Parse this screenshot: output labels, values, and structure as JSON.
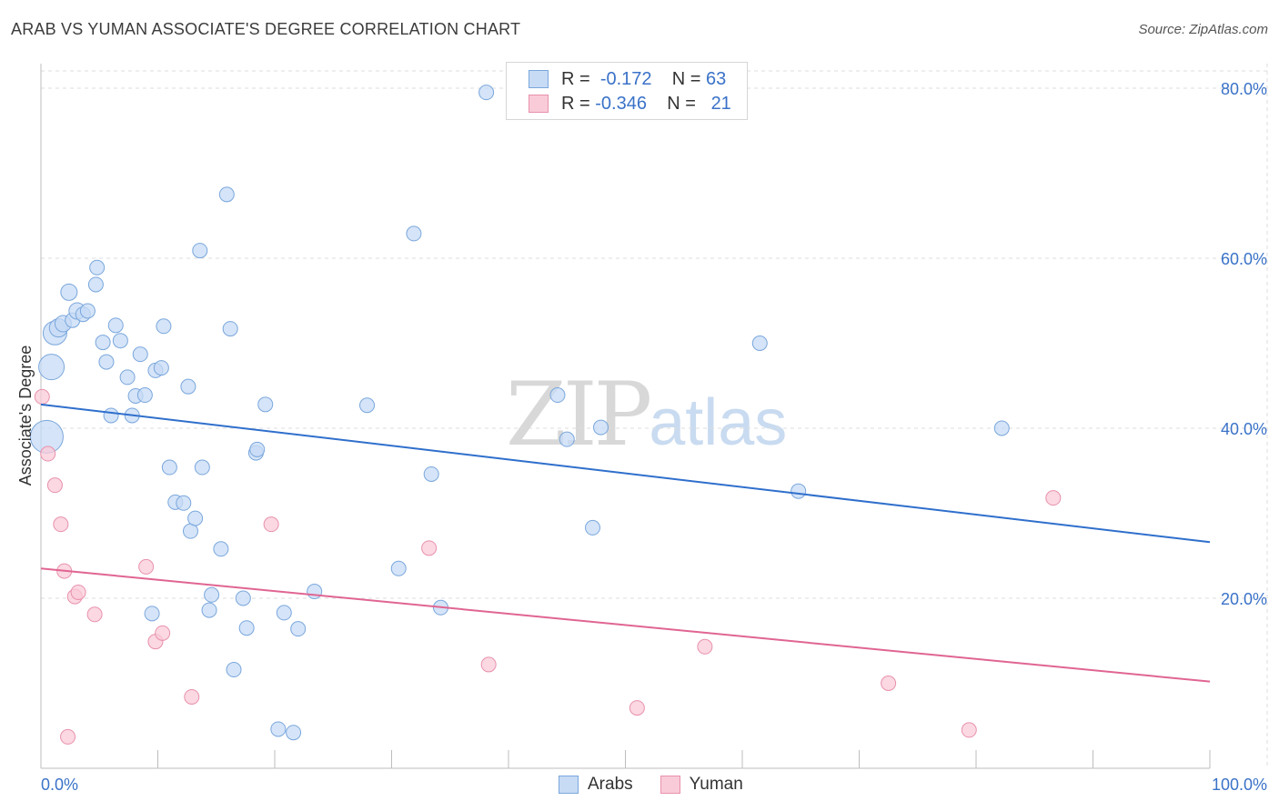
{
  "title": "ARAB VS YUMAN ASSOCIATE'S DEGREE CORRELATION CHART",
  "source": "Source: ZipAtlas.com",
  "watermark": {
    "part1": "ZIP",
    "part2": "atlas"
  },
  "colors": {
    "arabs_fill": "#c7dbf5",
    "arabs_stroke": "#7aa7dc",
    "arabs_line": "#2f6fcc",
    "yuman_fill": "#f9cbd8",
    "yuman_stroke": "#e891ac",
    "yuman_line": "#e06592",
    "tick_label": "#3a72c8",
    "grid": "#dcdcdc"
  },
  "legend": {
    "rows": [
      {
        "r_label": "R =",
        "r_value": "-0.172",
        "n_label": "N =",
        "n_value": "63"
      },
      {
        "r_label": "R =",
        "r_value": "-0.346",
        "n_label": "N =",
        "n_value": "21"
      }
    ]
  },
  "bottom_legend": [
    "Arabs",
    "Yuman"
  ],
  "chart_data": {
    "type": "scatter",
    "title": "ARAB VS YUMAN ASSOCIATE'S DEGREE CORRELATION CHART",
    "xlabel": "",
    "ylabel": "Associate's Degree",
    "xlim": [
      0,
      100
    ],
    "ylim": [
      0,
      85
    ],
    "x_ticks": [
      "0.0%",
      "100.0%"
    ],
    "y_ticks": [
      {
        "value": 20,
        "label": "20.0%"
      },
      {
        "value": 40,
        "label": "40.0%"
      },
      {
        "value": 60,
        "label": "60.0%"
      },
      {
        "value": 80,
        "label": "80.0%"
      }
    ],
    "grid": true,
    "legend_position": "top-center",
    "series": [
      {
        "name": "Arabs",
        "R": -0.172,
        "N": 63,
        "trend": {
          "x": [
            0,
            100
          ],
          "y": [
            42.8,
            26.6
          ]
        },
        "points": [
          [
            0.5,
            39.0,
            18
          ],
          [
            0.9,
            47.2,
            14
          ],
          [
            1.2,
            51.2,
            13
          ],
          [
            1.5,
            51.8,
            10
          ],
          [
            1.9,
            52.3,
            9
          ],
          [
            2.4,
            56.0,
            9
          ],
          [
            2.7,
            52.7,
            8
          ],
          [
            3.1,
            53.8,
            9
          ],
          [
            3.6,
            53.4,
            8
          ],
          [
            4.0,
            53.8,
            8
          ],
          [
            4.7,
            56.9,
            8
          ],
          [
            4.8,
            58.9,
            8
          ],
          [
            5.3,
            50.1,
            8
          ],
          [
            5.6,
            47.8,
            8
          ],
          [
            6.0,
            41.5,
            8
          ],
          [
            6.4,
            52.1,
            8
          ],
          [
            6.8,
            50.3,
            8
          ],
          [
            7.4,
            46.0,
            8
          ],
          [
            7.8,
            41.5,
            8
          ],
          [
            8.1,
            43.8,
            8
          ],
          [
            8.5,
            48.7,
            8
          ],
          [
            8.9,
            43.9,
            8
          ],
          [
            9.5,
            18.2,
            8
          ],
          [
            9.8,
            46.8,
            8
          ],
          [
            10.3,
            47.1,
            8
          ],
          [
            10.5,
            52.0,
            8
          ],
          [
            11.0,
            35.4,
            8
          ],
          [
            11.5,
            31.3,
            8
          ],
          [
            12.2,
            31.2,
            8
          ],
          [
            12.6,
            44.9,
            8
          ],
          [
            12.8,
            27.9,
            8
          ],
          [
            13.2,
            29.4,
            8
          ],
          [
            13.6,
            60.9,
            8
          ],
          [
            13.8,
            35.4,
            8
          ],
          [
            14.4,
            18.6,
            8
          ],
          [
            14.6,
            20.4,
            8
          ],
          [
            15.4,
            25.8,
            8
          ],
          [
            15.9,
            67.5,
            8
          ],
          [
            16.2,
            51.7,
            8
          ],
          [
            16.5,
            11.6,
            8
          ],
          [
            17.3,
            20.0,
            8
          ],
          [
            17.6,
            16.5,
            8
          ],
          [
            18.4,
            37.1,
            8
          ],
          [
            18.5,
            37.5,
            8
          ],
          [
            19.2,
            42.8,
            8
          ],
          [
            20.3,
            4.6,
            8
          ],
          [
            20.8,
            18.3,
            8
          ],
          [
            21.6,
            4.2,
            8
          ],
          [
            22.0,
            16.4,
            8
          ],
          [
            23.4,
            20.8,
            8
          ],
          [
            27.9,
            42.7,
            8
          ],
          [
            30.6,
            23.5,
            8
          ],
          [
            31.9,
            62.9,
            8
          ],
          [
            33.4,
            34.6,
            8
          ],
          [
            34.2,
            18.9,
            8
          ],
          [
            38.1,
            79.5,
            8
          ],
          [
            44.2,
            43.9,
            8
          ],
          [
            45.0,
            38.7,
            8
          ],
          [
            47.2,
            28.3,
            8
          ],
          [
            47.9,
            40.1,
            8
          ],
          [
            61.5,
            50.0,
            8
          ],
          [
            64.8,
            32.6,
            8
          ],
          [
            82.2,
            40.0,
            8
          ]
        ]
      },
      {
        "name": "Yuman",
        "R": -0.346,
        "N": 21,
        "trend": {
          "x": [
            0,
            100
          ],
          "y": [
            23.5,
            10.2
          ]
        },
        "points": [
          [
            0.1,
            43.7,
            8
          ],
          [
            0.6,
            37.0,
            8
          ],
          [
            1.2,
            33.3,
            8
          ],
          [
            1.7,
            28.7,
            8
          ],
          [
            2.0,
            23.2,
            8
          ],
          [
            2.3,
            3.7,
            8
          ],
          [
            2.9,
            20.2,
            8
          ],
          [
            3.2,
            20.7,
            8
          ],
          [
            4.6,
            18.1,
            8
          ],
          [
            9.0,
            23.7,
            8
          ],
          [
            9.8,
            14.9,
            8
          ],
          [
            10.4,
            15.9,
            8
          ],
          [
            12.9,
            8.4,
            8
          ],
          [
            19.7,
            28.7,
            8
          ],
          [
            33.2,
            25.9,
            8
          ],
          [
            38.3,
            12.2,
            8
          ],
          [
            51.0,
            7.1,
            8
          ],
          [
            56.8,
            14.3,
            8
          ],
          [
            72.5,
            10.0,
            8
          ],
          [
            79.4,
            4.5,
            8
          ],
          [
            86.6,
            31.8,
            8
          ]
        ]
      }
    ]
  }
}
